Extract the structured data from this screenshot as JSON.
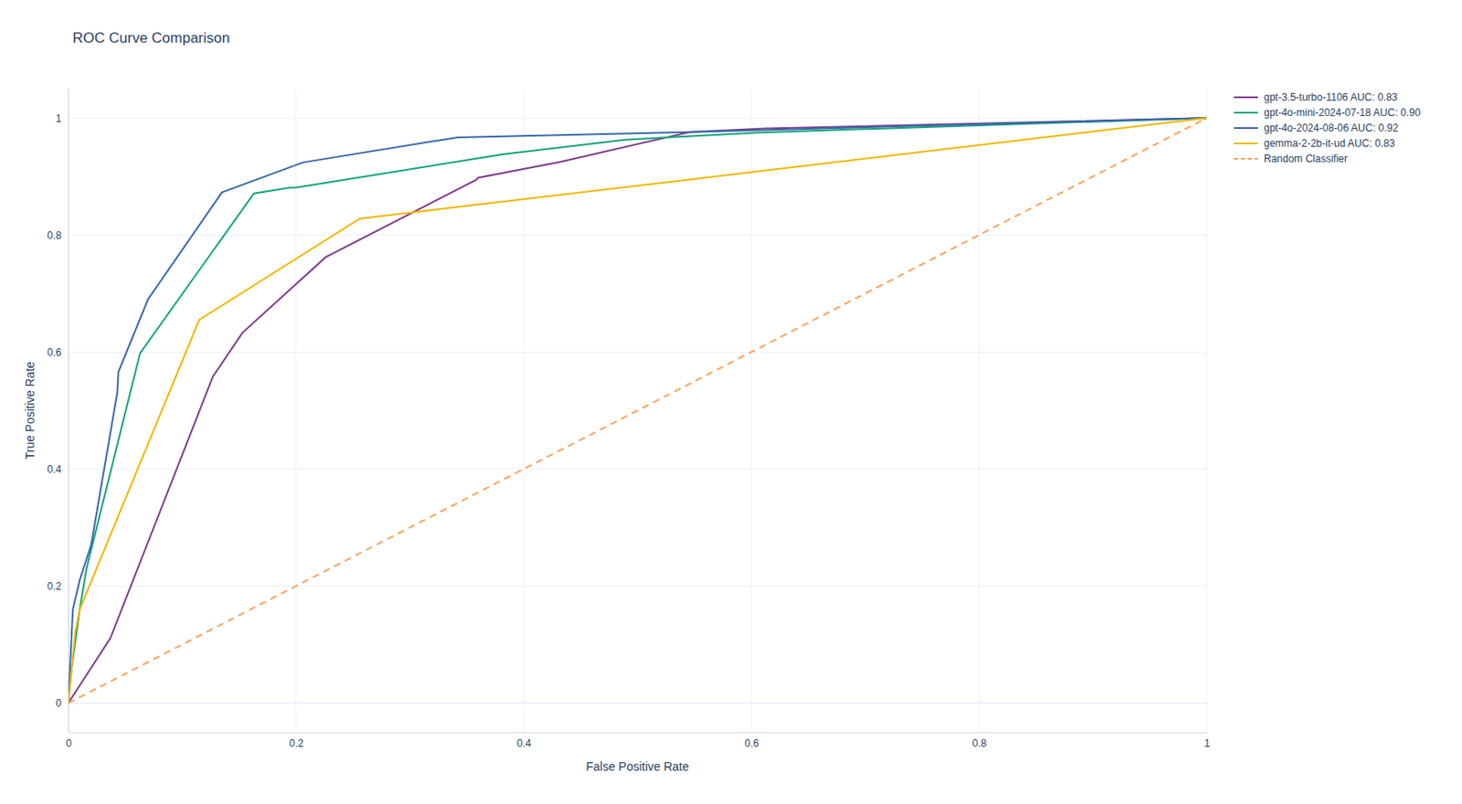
{
  "chart_data": {
    "type": "line",
    "title": "ROC Curve Comparison",
    "x_label": "False Positive Rate",
    "y_label": "True Positive Rate",
    "xlim": [
      0,
      1
    ],
    "ylim": [
      -0.05,
      1.05
    ],
    "xticks": [
      0,
      0.2,
      0.4,
      0.6,
      0.8,
      1
    ],
    "yticks": [
      0,
      0.2,
      0.4,
      0.6,
      0.8,
      1
    ],
    "grid": true,
    "legend": "outside-right",
    "series": [
      {
        "name": "gpt-3.5-turbo-1106 AUC: 0.83",
        "color": "#7f3c8d",
        "x": [
          0,
          0.037,
          0.127,
          0.153,
          0.226,
          0.358,
          0.36,
          0.432,
          0.546,
          0.612,
          1
        ],
        "values": [
          0,
          0.111,
          0.558,
          0.633,
          0.762,
          0.894,
          0.898,
          0.925,
          0.976,
          0.982,
          1
        ]
      },
      {
        "name": "gpt-4o-mini-2024-07-18 AUC: 0.90",
        "color": "#11a579",
        "x": [
          0,
          0.003,
          0.01,
          0.016,
          0.063,
          0.163,
          0.195,
          0.2,
          0.382,
          0.489,
          0.604,
          1
        ],
        "values": [
          0,
          0.06,
          0.16,
          0.23,
          0.598,
          0.871,
          0.881,
          0.881,
          0.938,
          0.963,
          0.975,
          1
        ]
      },
      {
        "name": "gpt-4o-2024-08-06 AUC: 0.92",
        "color": "#3969ac",
        "x": [
          0,
          0.004,
          0.01,
          0.02,
          0.043,
          0.044,
          0.07,
          0.135,
          0.206,
          0.342,
          0.546,
          1
        ],
        "values": [
          0,
          0.16,
          0.21,
          0.27,
          0.53,
          0.566,
          0.69,
          0.873,
          0.924,
          0.967,
          0.976,
          1
        ]
      },
      {
        "name": "gemma-2-2b-it-ud AUC: 0.83",
        "color": "#f2b701",
        "x": [
          0,
          0.006,
          0.01,
          0.115,
          0.256,
          1
        ],
        "values": [
          0,
          0.12,
          0.16,
          0.655,
          0.828,
          1
        ]
      },
      {
        "name": "Random Classifier",
        "color": "#ffa15a",
        "line_style": "dash",
        "x": [
          0,
          1
        ],
        "values": [
          0,
          1
        ]
      }
    ]
  }
}
